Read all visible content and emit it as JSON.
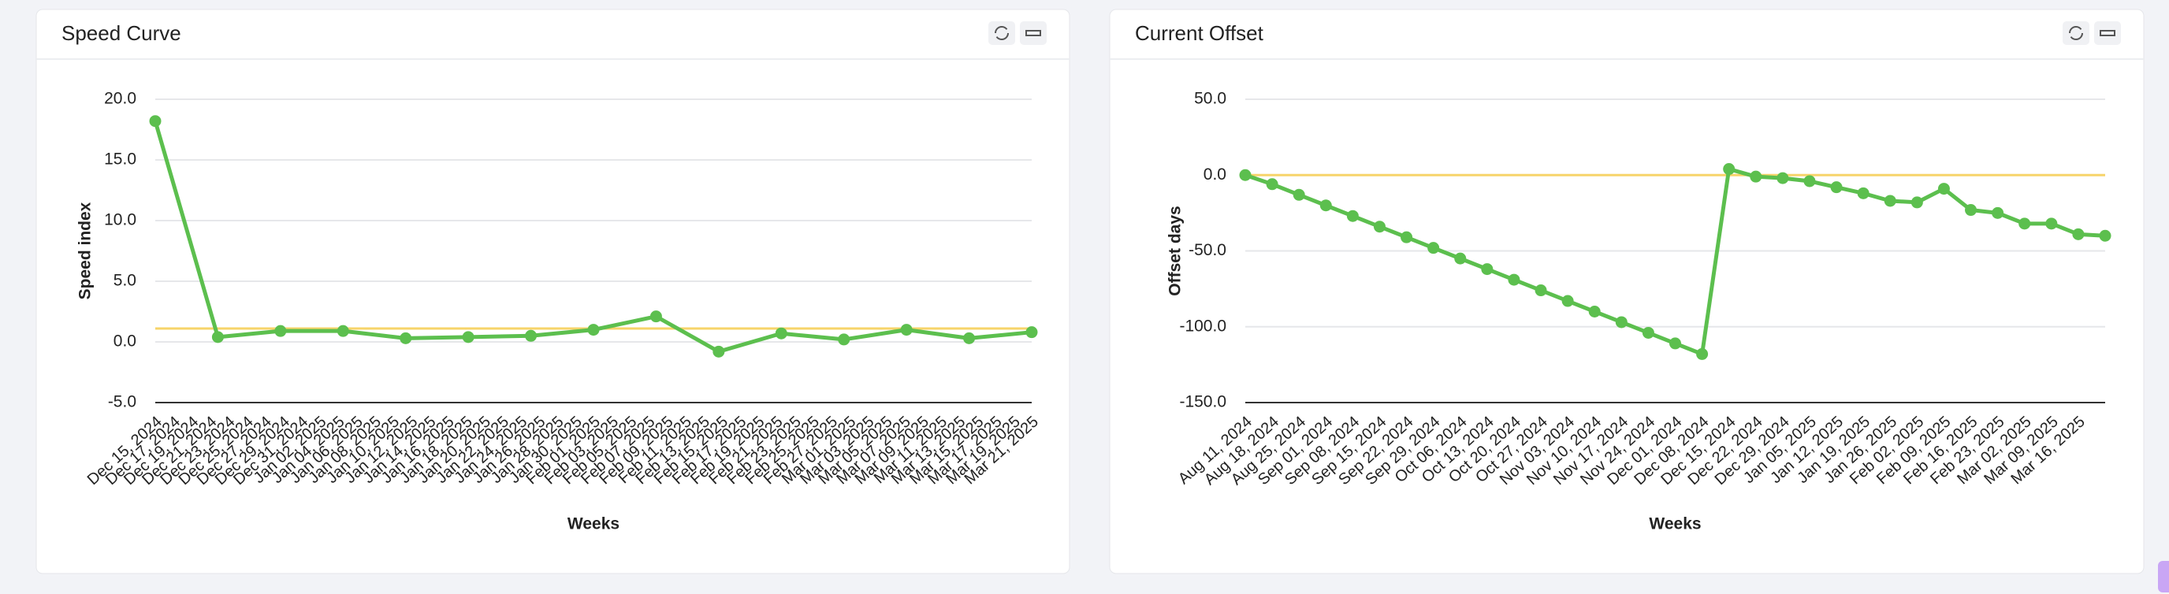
{
  "chart_data": [
    {
      "type": "line",
      "title": "Speed Curve",
      "xlabel": "Weeks",
      "ylabel": "Speed index",
      "x_labels": [
        "Dec 15, 2024",
        "Dec 17, 2024",
        "Dec 19, 2024",
        "Dec 21, 2024",
        "Dec 23, 2024",
        "Dec 25, 2024",
        "Dec 27, 2024",
        "Dec 29, 2024",
        "Dec 31, 2024",
        "Jan 02, 2025",
        "Jan 04, 2025",
        "Jan 06, 2025",
        "Jan 08, 2025",
        "Jan 10, 2025",
        "Jan 12, 2025",
        "Jan 14, 2025",
        "Jan 16, 2025",
        "Jan 18, 2025",
        "Jan 20, 2025",
        "Jan 22, 2025",
        "Jan 24, 2025",
        "Jan 26, 2025",
        "Jan 28, 2025",
        "Jan 30, 2025",
        "Feb 01, 2025",
        "Feb 03, 2025",
        "Feb 05, 2025",
        "Feb 07, 2025",
        "Feb 09, 2025",
        "Feb 11, 2025",
        "Feb 13, 2025",
        "Feb 15, 2025",
        "Feb 17, 2025",
        "Feb 19, 2025",
        "Feb 21, 2025",
        "Feb 23, 2025",
        "Feb 25, 2025",
        "Feb 27, 2025",
        "Mar 01, 2025",
        "Mar 03, 2025",
        "Mar 05, 2025",
        "Mar 07, 2025",
        "Mar 09, 2025",
        "Mar 11, 2025",
        "Mar 13, 2025",
        "Mar 15, 2025",
        "Mar 17, 2025",
        "Mar 19, 2025",
        "Mar 21, 2025"
      ],
      "values": [
        18.2,
        0.4,
        0.9,
        0.9,
        0.3,
        0.4,
        0.5,
        1.0,
        2.1,
        -0.8,
        0.7,
        0.2,
        1.0,
        0.3,
        0.8
      ],
      "color": "#5cbf4e",
      "reference_line": {
        "value": 1.1,
        "color": "#f7d46a"
      },
      "ylim": [
        -5,
        20
      ],
      "yticks": [
        {
          "value": -5,
          "label": "-5.0"
        },
        {
          "value": 0,
          "label": "0.0"
        },
        {
          "value": 5,
          "label": "5.0"
        },
        {
          "value": 10,
          "label": "10.0"
        },
        {
          "value": 15,
          "label": "15.0"
        },
        {
          "value": 20,
          "label": "20.0"
        }
      ],
      "grid": true
    },
    {
      "type": "line",
      "title": "Current Offset",
      "xlabel": "Weeks",
      "ylabel": "Offset days",
      "categories": [
        "Aug 11, 2024",
        "Aug 18, 2024",
        "Aug 25, 2024",
        "Sep 01, 2024",
        "Sep 08, 2024",
        "Sep 15, 2024",
        "Sep 22, 2024",
        "Sep 29, 2024",
        "Oct 06, 2024",
        "Oct 13, 2024",
        "Oct 20, 2024",
        "Oct 27, 2024",
        "Nov 03, 2024",
        "Nov 10, 2024",
        "Nov 17, 2024",
        "Nov 24, 2024",
        "Dec 01, 2024",
        "Dec 08, 2024",
        "Dec 15, 2024",
        "Dec 22, 2024",
        "Dec 29, 2024",
        "Jan 05, 2025",
        "Jan 12, 2025",
        "Jan 19, 2025",
        "Jan 26, 2025",
        "Feb 02, 2025",
        "Feb 09, 2025",
        "Feb 16, 2025",
        "Feb 23, 2025",
        "Mar 02, 2025",
        "Mar 09, 2025",
        "Mar 16, 2025",
        null
      ],
      "values": [
        0,
        -6,
        -13,
        -20,
        -27,
        -34,
        -41,
        -48,
        -55,
        -62,
        -69,
        -76,
        -83,
        -90,
        -97,
        -104,
        -111,
        -118,
        4,
        -1,
        -2,
        -4,
        -8,
        -12,
        -17,
        -18,
        -9,
        -23,
        -25,
        -32,
        -32,
        -39,
        -40
      ],
      "color": "#5cbf4e",
      "reference_line": {
        "value": 0,
        "color": "#f7d46a"
      },
      "ylim": [
        -150,
        50
      ],
      "yticks": [
        {
          "value": -150,
          "label": "-150.0"
        },
        {
          "value": -100,
          "label": "-100.0"
        },
        {
          "value": -50,
          "label": "-50.0"
        },
        {
          "value": 0,
          "label": "0.0"
        },
        {
          "value": 50,
          "label": "50.0"
        }
      ],
      "grid": true
    }
  ]
}
